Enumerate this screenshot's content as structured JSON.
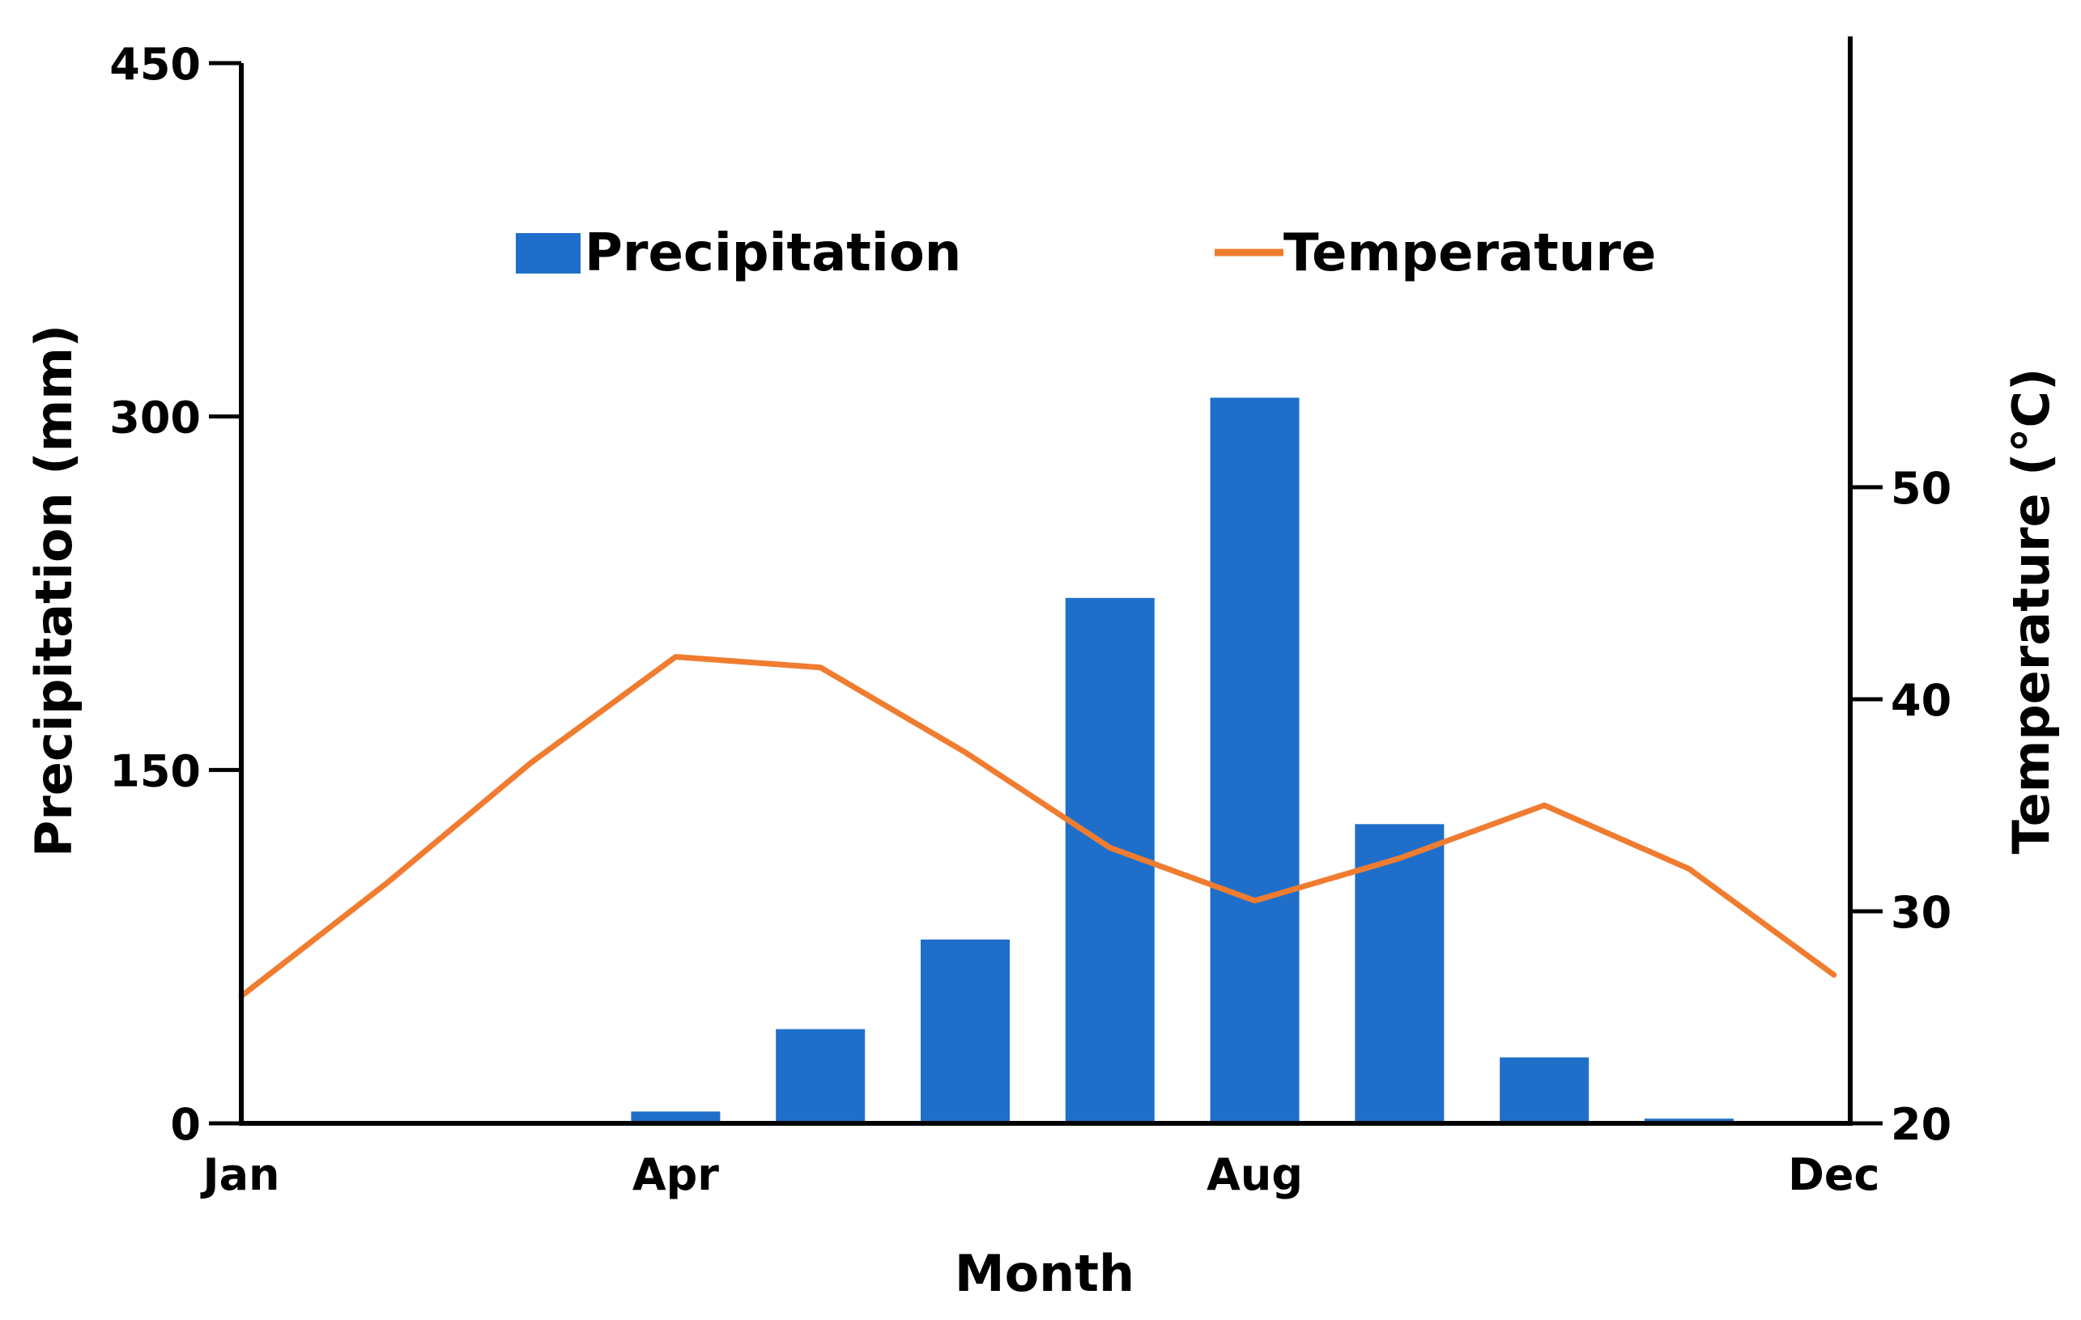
{
  "chart_data": {
    "type": "bar+line",
    "xlabel": "Month",
    "ylabel": "Precipitation (mm)",
    "y2label": "Temperature (°C)",
    "ylim": [
      0,
      450
    ],
    "y2lim": [
      20,
      70
    ],
    "yticks": [
      0,
      150,
      300,
      450
    ],
    "y2ticks": [
      20,
      30,
      40,
      50
    ],
    "x_tick_labels": [
      {
        "label": "Jan",
        "month": 1
      },
      {
        "label": "Apr",
        "month": 4
      },
      {
        "label": "Aug",
        "month": 8
      },
      {
        "label": "Dec",
        "month": 12
      }
    ],
    "legend": {
      "position": "top-center",
      "entries": [
        "Precipitation",
        "Temperature"
      ]
    },
    "series": [
      {
        "name": "Precipitation",
        "kind": "bar",
        "axis": "left",
        "color": "#1F6FCA",
        "months": [
          4,
          5,
          6,
          7,
          8,
          9,
          10,
          11
        ],
        "values": [
          5,
          40,
          78,
          223,
          308,
          127,
          28,
          2
        ]
      },
      {
        "name": "Temperature",
        "kind": "line",
        "axis": "right",
        "color": "#F07C30",
        "months": [
          1,
          2,
          3,
          4,
          5,
          6,
          7,
          8,
          9,
          10,
          11,
          12
        ],
        "values": [
          26,
          31.3,
          37,
          42,
          41.5,
          37.5,
          33,
          30.5,
          32.5,
          35,
          32,
          27
        ]
      }
    ]
  }
}
